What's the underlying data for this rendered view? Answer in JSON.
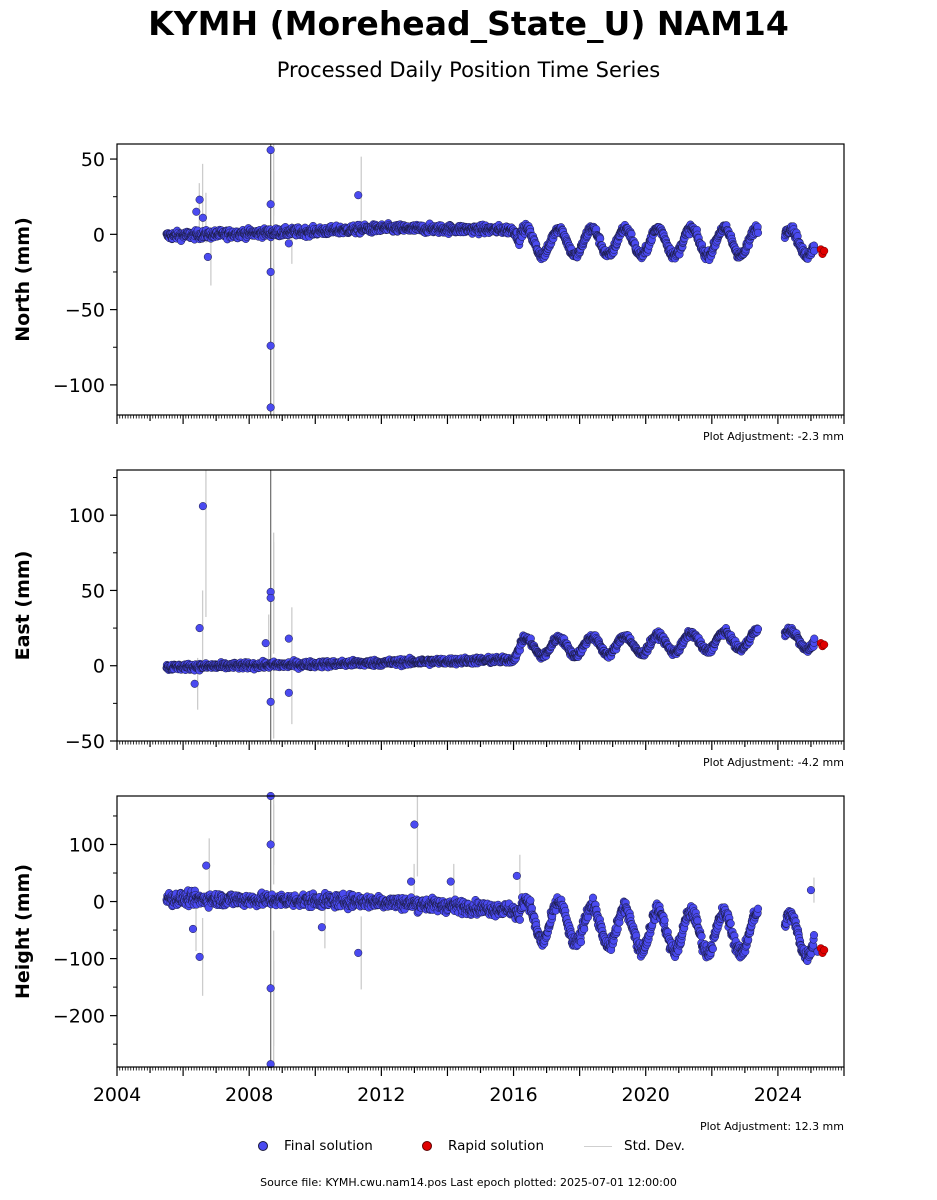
{
  "title": "KYMH (Morehead_State_U) NAM14",
  "subtitle": "Processed Daily Position Time Series",
  "colors": {
    "final": "#4a4af0",
    "final_edge": "#1a1a40",
    "rapid": "#e00000",
    "std_dev": "#cccccc"
  },
  "legend": {
    "final": "Final solution",
    "rapid": "Rapid solution",
    "std": "Std. Dev."
  },
  "footer": "Source file: KYMH.cwu.nam14.pos  Last epoch plotted: 2025-07-01 12:00:00",
  "chart_data": [
    {
      "type": "scatter",
      "ylabel": "North (mm)",
      "xlim": [
        2004,
        2026
      ],
      "ylim": [
        -120,
        60
      ],
      "yticks": [
        50,
        0,
        -50,
        -100
      ],
      "ytick_labels": [
        "50",
        "0",
        "−50",
        "−100"
      ],
      "adjustment": "Plot Adjustment: -2.3 mm",
      "trend": {
        "kind": "piecewise",
        "points": [
          [
            2005.5,
            -1
          ],
          [
            2008.5,
            1
          ],
          [
            2010,
            2
          ],
          [
            2012,
            4
          ],
          [
            2016,
            3
          ],
          [
            2016.2,
            -5
          ]
        ],
        "seasonal_amp": 9,
        "seasonal_from": 2016.2,
        "noise": 2
      },
      "outliers": [
        {
          "x": 2006.4,
          "y": 15
        },
        {
          "x": 2006.5,
          "y": 23
        },
        {
          "x": 2006.6,
          "y": 11
        },
        {
          "x": 2006.75,
          "y": -15
        },
        {
          "x": 2008.65,
          "y": 56
        },
        {
          "x": 2008.65,
          "y": 20
        },
        {
          "x": 2008.65,
          "y": -25
        },
        {
          "x": 2008.65,
          "y": -74
        },
        {
          "x": 2008.65,
          "y": -115
        },
        {
          "x": 2009.2,
          "y": -6
        },
        {
          "x": 2011.3,
          "y": 26
        }
      ],
      "rapid": [
        {
          "x": 2025.3,
          "y": -10
        },
        {
          "x": 2025.35,
          "y": -13
        },
        {
          "x": 2025.4,
          "y": -11
        }
      ],
      "gaps": [
        [
          2023.4,
          2024.2
        ]
      ],
      "last_final": [
        {
          "x": 2025.1,
          "y": -11
        }
      ]
    },
    {
      "type": "scatter",
      "ylabel": "East (mm)",
      "xlim": [
        2004,
        2026
      ],
      "ylim": [
        -50,
        130
      ],
      "yticks": [
        100,
        50,
        0,
        -50
      ],
      "ytick_labels": [
        "100",
        "50",
        "0",
        "−50"
      ],
      "adjustment": "Plot Adjustment: -4.2 mm",
      "trend": {
        "kind": "piecewise",
        "points": [
          [
            2005.5,
            -1
          ],
          [
            2010,
            1
          ],
          [
            2016,
            4
          ],
          [
            2016.2,
            12
          ],
          [
            2020,
            14
          ],
          [
            2024,
            18
          ],
          [
            2025.5,
            16
          ]
        ],
        "seasonal_amp": 6,
        "seasonal_from": 2016.2,
        "noise": 1.5
      },
      "outliers": [
        {
          "x": 2006.35,
          "y": -12
        },
        {
          "x": 2006.5,
          "y": 25
        },
        {
          "x": 2006.6,
          "y": 106
        },
        {
          "x": 2008.5,
          "y": 15
        },
        {
          "x": 2008.65,
          "y": 49
        },
        {
          "x": 2008.65,
          "y": 45
        },
        {
          "x": 2008.65,
          "y": -24
        },
        {
          "x": 2009.2,
          "y": 18
        },
        {
          "x": 2009.2,
          "y": -18
        }
      ],
      "rapid": [
        {
          "x": 2025.3,
          "y": 15
        },
        {
          "x": 2025.35,
          "y": 13
        },
        {
          "x": 2025.4,
          "y": 14
        }
      ],
      "gaps": [
        [
          2023.4,
          2024.2
        ]
      ],
      "last_final": [
        {
          "x": 2025.1,
          "y": 18
        }
      ]
    },
    {
      "type": "scatter",
      "ylabel": "Height (mm)",
      "xlim": [
        2004,
        2026
      ],
      "ylim": [
        -290,
        185
      ],
      "yticks": [
        100,
        0,
        -100,
        -200
      ],
      "ytick_labels": [
        "100",
        "0",
        "−100",
        "−200"
      ],
      "xticks": [
        2004,
        2008,
        2012,
        2016,
        2020,
        2024
      ],
      "xtick_labels": [
        "2004",
        "2008",
        "2012",
        "2016",
        "2020",
        "2024"
      ],
      "adjustment": "Plot Adjustment: 12.3 mm",
      "trend": {
        "kind": "piecewise",
        "points": [
          [
            2005.5,
            5
          ],
          [
            2012,
            0
          ],
          [
            2016,
            -15
          ],
          [
            2016.2,
            -30
          ],
          [
            2020,
            -50
          ],
          [
            2025,
            -60
          ]
        ],
        "seasonal_amp": 35,
        "seasonal_from": 2016.2,
        "noise": 8
      },
      "outliers": [
        {
          "x": 2006.3,
          "y": -48
        },
        {
          "x": 2006.5,
          "y": -97
        },
        {
          "x": 2006.7,
          "y": 63
        },
        {
          "x": 2008.65,
          "y": 185
        },
        {
          "x": 2008.65,
          "y": 100
        },
        {
          "x": 2008.65,
          "y": -152
        },
        {
          "x": 2008.65,
          "y": -285
        },
        {
          "x": 2010.2,
          "y": -45
        },
        {
          "x": 2011.3,
          "y": -90
        },
        {
          "x": 2012.9,
          "y": 35
        },
        {
          "x": 2013.0,
          "y": 135
        },
        {
          "x": 2014.1,
          "y": 35
        },
        {
          "x": 2016.1,
          "y": 45
        },
        {
          "x": 2025.0,
          "y": 20
        }
      ],
      "rapid": [
        {
          "x": 2025.3,
          "y": -82
        },
        {
          "x": 2025.35,
          "y": -90
        },
        {
          "x": 2025.4,
          "y": -85
        }
      ],
      "gaps": [
        [
          2023.4,
          2024.2
        ]
      ],
      "last_final": [
        {
          "x": 2025.2,
          "y": -88
        }
      ]
    }
  ]
}
